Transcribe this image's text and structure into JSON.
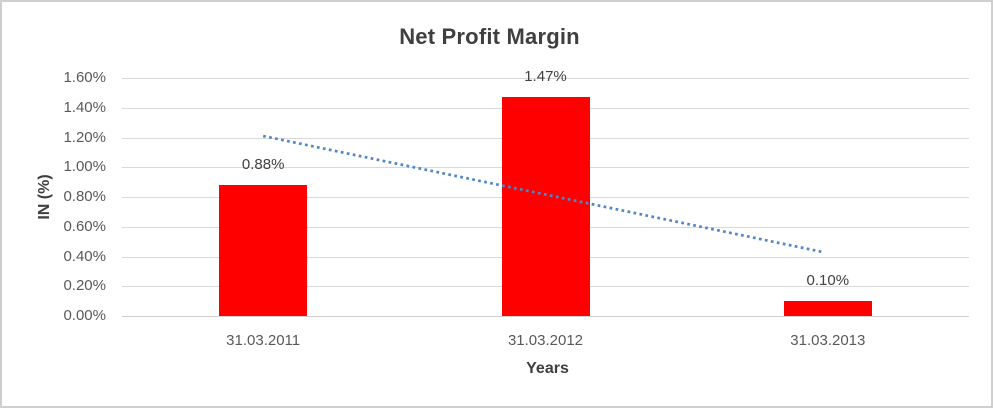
{
  "chart_data": {
    "type": "bar",
    "title": "Net Profit Margin",
    "categories": [
      "31.03.2011",
      "31.03.2012",
      "31.03.2013"
    ],
    "values": [
      0.88,
      1.47,
      0.1
    ],
    "data_labels": [
      "0.88%",
      "1.47%",
      "0.10%"
    ],
    "xlabel": "Years",
    "ylabel": "IN (%)",
    "ylim": [
      0,
      1.6
    ],
    "ytick_step": 0.2,
    "ytick_labels": [
      "0.00%",
      "0.20%",
      "0.40%",
      "0.60%",
      "0.80%",
      "1.00%",
      "1.20%",
      "1.40%",
      "1.60%"
    ],
    "grid": true,
    "legend": "none",
    "bar_color": "#FF0000",
    "trendline": {
      "type": "linear",
      "style": "dotted",
      "color": "#4E86C8",
      "start_value": 1.21,
      "end_value": 0.43
    }
  },
  "colors": {
    "gridline": "#D9D9D9",
    "axis_text": "#595959",
    "title_text": "#3F3F3F",
    "data_label_text": "#404040",
    "frame_border": "#CFCFCF",
    "background": "#FFFFFF"
  }
}
